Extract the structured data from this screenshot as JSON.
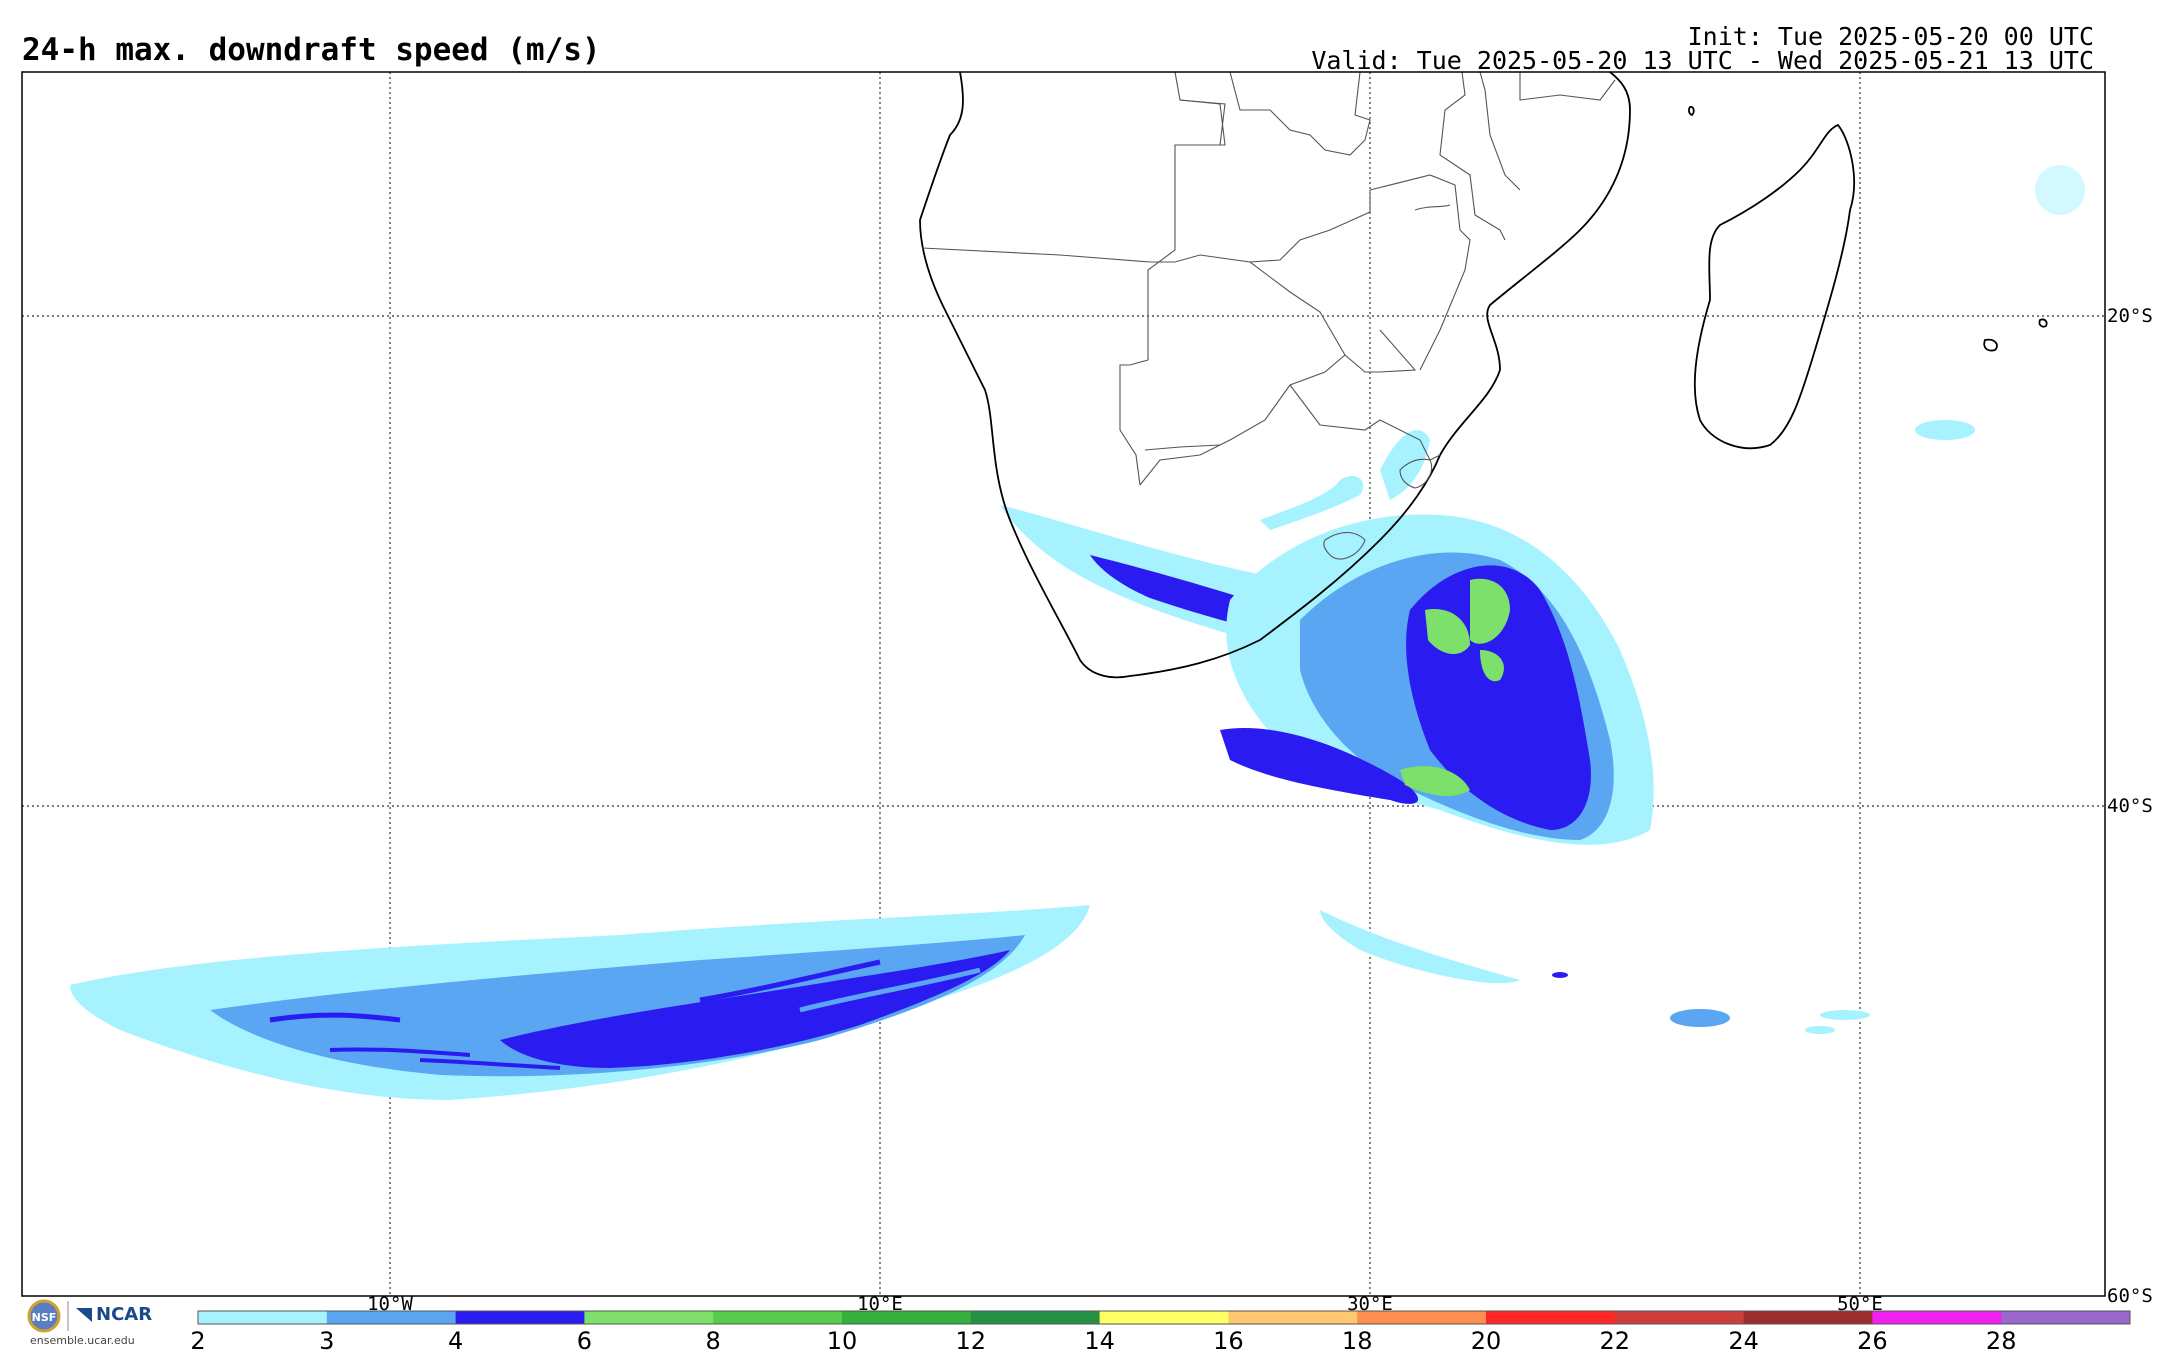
{
  "header": {
    "title": "24-h max. downdraft speed (m/s)",
    "init": "Init: Tue 2025-05-20 00 UTC",
    "valid": "Valid: Tue 2025-05-20 13 UTC - Wed 2025-05-21 13 UTC"
  },
  "map": {
    "lon_labels": [
      "10°W",
      "10°E",
      "30°E",
      "50°E"
    ],
    "lat_labels": [
      "20°S",
      "40°S",
      "60°S"
    ],
    "gridline_style": "dotted"
  },
  "colorbar": {
    "ticks": [
      "2",
      "3",
      "4",
      "6",
      "8",
      "10",
      "12",
      "14",
      "16",
      "18",
      "20",
      "22",
      "24",
      "26",
      "28"
    ],
    "colors": [
      "#a6f3ff",
      "#5aa6f2",
      "#2a1cf0",
      "#7de06a",
      "#56cc4a",
      "#36b03c",
      "#249044",
      "#ffff66",
      "#ffc86e",
      "#ff8e50",
      "#ff2626",
      "#cc3e3e",
      "#9e2e2e",
      "#f020f0",
      "#9a66cc"
    ]
  },
  "footer": {
    "org": "NCAR",
    "url": "ensemble.ucar.edu",
    "seal_text": "NSF"
  },
  "colors": {
    "light_blue": "#a6f3ff",
    "mid_blue": "#5aa6f2",
    "dark_blue": "#2a1cf0",
    "green": "#7de06a"
  }
}
